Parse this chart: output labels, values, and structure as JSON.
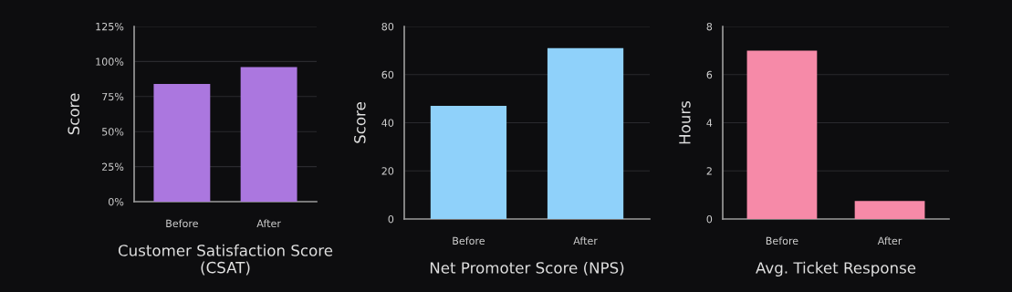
{
  "chart_data": [
    {
      "type": "bar",
      "xlabel": "Customer Satisfaction Score\n(CSAT)",
      "ylabel": "Score",
      "categories": [
        "Before",
        "After"
      ],
      "values": [
        84,
        96
      ],
      "color": "#ab77df",
      "ylim": [
        0,
        125
      ],
      "yticks": [
        {
          "value": 0,
          "label": "0%"
        },
        {
          "value": 25,
          "label": "25%"
        },
        {
          "value": 50,
          "label": "50%"
        },
        {
          "value": 75,
          "label": "75%"
        },
        {
          "value": 100,
          "label": "100%"
        },
        {
          "value": 125,
          "label": "125%"
        }
      ],
      "grid": "y"
    },
    {
      "type": "bar",
      "xlabel": "Net Promoter Score (NPS)",
      "ylabel": "Score",
      "categories": [
        "Before",
        "After"
      ],
      "values": [
        47,
        71
      ],
      "color": "#8fd1fa",
      "ylim": [
        0,
        80
      ],
      "yticks": [
        0,
        20,
        40,
        60,
        80
      ],
      "grid": "y"
    },
    {
      "type": "bar",
      "xlabel": "Avg. Ticket Response",
      "ylabel": "Hours",
      "categories": [
        "Before",
        "After"
      ],
      "values": [
        7,
        0.75
      ],
      "color": "#f68aa8",
      "ylim": [
        0,
        8
      ],
      "yticks": [
        0,
        2,
        4,
        6,
        8
      ],
      "grid": "y"
    }
  ]
}
